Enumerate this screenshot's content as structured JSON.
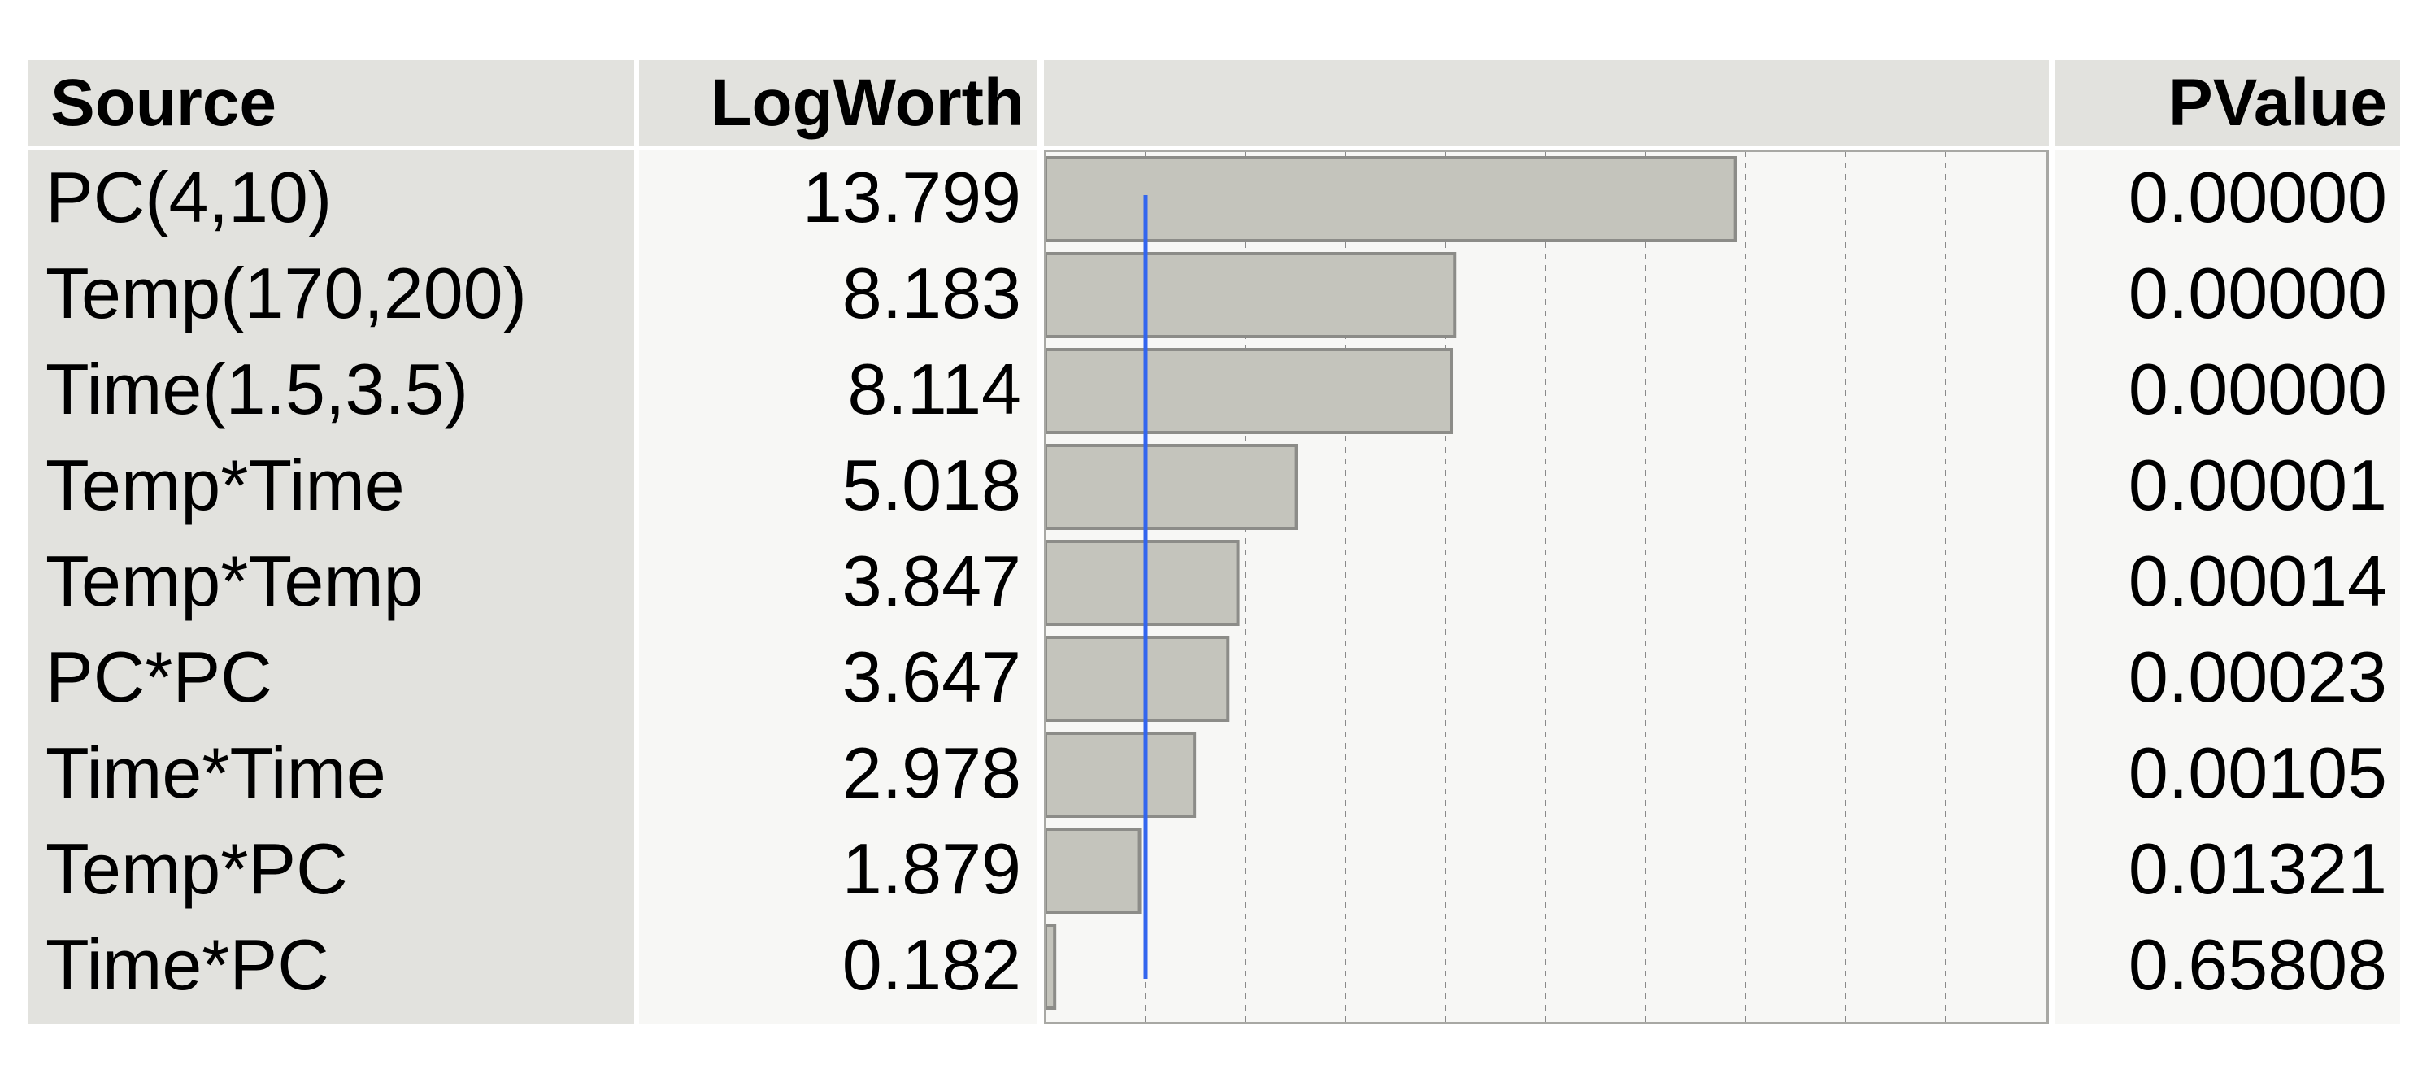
{
  "table": {
    "headers": {
      "source": "Source",
      "logworth": "LogWorth",
      "bar": "",
      "pvalue": "PValue"
    },
    "rows": [
      {
        "source": "PC(4,10)",
        "logworth": "13.799",
        "pvalue": "0.00000"
      },
      {
        "source": "Temp(170,200)",
        "logworth": "8.183",
        "pvalue": "0.00000"
      },
      {
        "source": "Time(1.5,3.5)",
        "logworth": "8.114",
        "pvalue": "0.00000"
      },
      {
        "source": "Temp*Time",
        "logworth": "5.018",
        "pvalue": "0.00001"
      },
      {
        "source": "Temp*Temp",
        "logworth": "3.847",
        "pvalue": "0.00014"
      },
      {
        "source": "PC*PC",
        "logworth": "3.647",
        "pvalue": "0.00023"
      },
      {
        "source": "Time*Time",
        "logworth": "2.978",
        "pvalue": "0.00105"
      },
      {
        "source": "Temp*PC",
        "logworth": "1.879",
        "pvalue": "0.01321"
      },
      {
        "source": "Time*PC",
        "logworth": "0.182",
        "pvalue": "0.65808"
      }
    ]
  },
  "chart_data": {
    "type": "bar",
    "orientation": "horizontal",
    "categories": [
      "PC(4,10)",
      "Temp(170,200)",
      "Time(1.5,3.5)",
      "Temp*Time",
      "Temp*Temp",
      "PC*PC",
      "Time*Time",
      "Temp*PC",
      "Time*PC"
    ],
    "values": [
      13.799,
      8.183,
      8.114,
      5.018,
      3.847,
      3.647,
      2.978,
      1.879,
      0.182
    ],
    "xlim": [
      0,
      20
    ],
    "grid": true,
    "grid_interval": 2,
    "reference_line": {
      "value": 2,
      "color": "#3366ee",
      "meaning": "p = 0.01"
    },
    "bar_color": "#c4c4bc",
    "bar_edge_color": "#8c8c88"
  }
}
